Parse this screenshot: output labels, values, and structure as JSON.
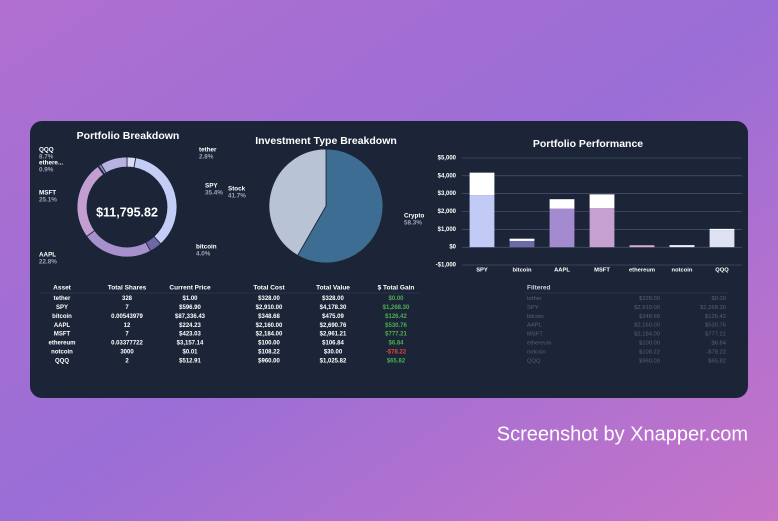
{
  "chart_data": [
    {
      "type": "donut",
      "title": "Portfolio Breakdown",
      "center_label": "$11,795.82",
      "categories": [
        "tether",
        "SPY",
        "bitcoin",
        "AAPL",
        "MSFT",
        null,
        "ethere...",
        "QQQ"
      ],
      "values": [
        2.8,
        35.4,
        4.0,
        22.8,
        25.1,
        0.3,
        0.9,
        8.7
      ],
      "value_labels": [
        "2.8%",
        "35.4%",
        "4.0%",
        "22.8%",
        "25.1%",
        null,
        "0.9%",
        "8.7%"
      ],
      "colors": [
        "#d9dcf3",
        "#c4cdf6",
        "#6f67a6",
        "#a791cc",
        "#c39fd1",
        "#e6a9d6",
        "#8e7fbd",
        "#b8b2e0"
      ]
    },
    {
      "type": "pie",
      "title": "Investment Type Breakdown",
      "categories": [
        "Crypto",
        "Stock"
      ],
      "values": [
        58.3,
        41.7
      ],
      "value_labels": [
        "58.3%",
        "41.7%"
      ],
      "colors": [
        "#3d6d92",
        "#b8c3d5"
      ]
    },
    {
      "type": "bar",
      "title": "Portfolio Performance",
      "stacked": true,
      "grid": true,
      "categories": [
        "SPY",
        "bitcoin",
        "AAPL",
        "MSFT",
        "ethereum",
        "notcoin",
        "QQQ"
      ],
      "series": [
        {
          "colors": [
            "#c1cbf6",
            "#6e69a7",
            "#a48bcf",
            "#c7a0d2",
            "#e3a8d7",
            "#c9cde6",
            "#dfe2f3"
          ],
          "values": [
            2910,
            348.68,
            2160,
            2184,
            100,
            108.22,
            960
          ]
        },
        {
          "color": "#ffffff",
          "values": [
            1268.3,
            126.42,
            530.76,
            777.21,
            6.84,
            -78.22,
            65.82
          ]
        }
      ],
      "ylim": [
        -1000,
        5000
      ],
      "yticks": [
        {
          "value": -1000,
          "label": "-$1,000"
        },
        {
          "value": 0,
          "label": "$0"
        },
        {
          "value": 1000,
          "label": "$1,000"
        },
        {
          "value": 2000,
          "label": "$2,000"
        },
        {
          "value": 3000,
          "label": "$3,000"
        },
        {
          "value": 4000,
          "label": "$4,000"
        },
        {
          "value": 5000,
          "label": "$5,000"
        }
      ]
    }
  ],
  "table": {
    "columns": [
      "Asset",
      "Total Shares",
      "Current Price",
      "Total Cost",
      "Total Value",
      "$ Total Gain"
    ],
    "rows": [
      [
        "tether",
        "328",
        "$1.00",
        "$328.00",
        "$328.00",
        "$0.00"
      ],
      [
        "SPY",
        "7",
        "$596.90",
        "$2,910.00",
        "$4,178.30",
        "$1,268.30"
      ],
      [
        "bitcoin",
        "0.00543979",
        "$87,336.43",
        "$348.68",
        "$475.09",
        "$126.42"
      ],
      [
        "AAPL",
        "12",
        "$224.23",
        "$2,160.00",
        "$2,690.76",
        "$530.76"
      ],
      [
        "MSFT",
        "7",
        "$423.03",
        "$2,184.00",
        "$2,961.21",
        "$777.21"
      ],
      [
        "ethereum",
        "0.03377722",
        "$3,157.14",
        "$100.00",
        "$106.84",
        "$6.84"
      ],
      [
        "notcoin",
        "3000",
        "$0.01",
        "$108.22",
        "$30.00",
        "-$78.22"
      ],
      [
        "QQQ",
        "2",
        "$512.91",
        "$960.00",
        "$1,025.82",
        "$65.82"
      ]
    ]
  },
  "filtered": {
    "title": "Filtered",
    "rows": [
      [
        "tether",
        "$328.00",
        "$0.00"
      ],
      [
        "SPY",
        "$2,910.00",
        "$1,268.30"
      ],
      [
        "bitcoin",
        "$348.68",
        "$126.42"
      ],
      [
        "AAPL",
        "$2,160.00",
        "$530.76"
      ],
      [
        "MSFT",
        "$2,184.00",
        "$777.21"
      ],
      [
        "ethereum",
        "$100.00",
        "$6.84"
      ],
      [
        "notcoin",
        "$108.22",
        "-$78.22"
      ],
      [
        "QQQ",
        "$960.00",
        "$65.82"
      ]
    ]
  },
  "watermark": "Screenshot by Xnapper.com"
}
